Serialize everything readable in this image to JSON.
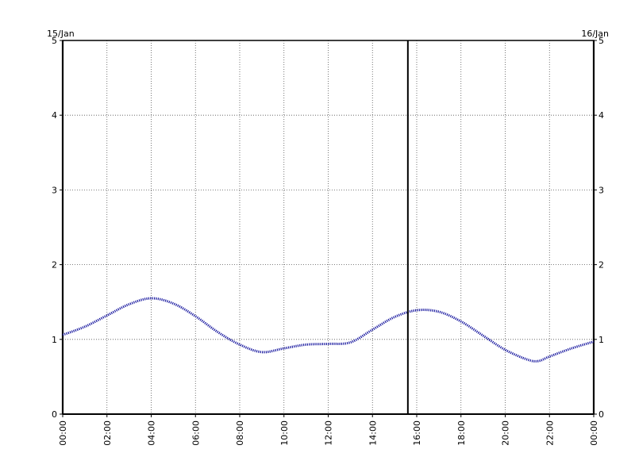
{
  "chart_data": {
    "type": "line",
    "x_axis": {
      "kind": "time",
      "start": "00:00",
      "end": "24:00",
      "tick_labels": [
        "00:00",
        "02:00",
        "04:00",
        "06:00",
        "08:00",
        "10:00",
        "12:00",
        "14:00",
        "16:00",
        "18:00",
        "20:00",
        "22:00",
        "00:00"
      ]
    },
    "date_labels": {
      "left": "15/Jan",
      "right": "16/Jan"
    },
    "y_axis": {
      "min": 0,
      "max": 5,
      "ticks": [
        0,
        1,
        2,
        3,
        4,
        5
      ],
      "mirrored_right": true
    },
    "grid": true,
    "current_time_marker": "15:36",
    "series": [
      {
        "color": "#1a1aa0",
        "style": "dotted",
        "points": [
          [
            "00:00",
            1.06
          ],
          [
            "01:00",
            1.17
          ],
          [
            "02:00",
            1.32
          ],
          [
            "03:00",
            1.47
          ],
          [
            "04:00",
            1.55
          ],
          [
            "05:00",
            1.48
          ],
          [
            "06:00",
            1.31
          ],
          [
            "07:00",
            1.1
          ],
          [
            "08:00",
            0.93
          ],
          [
            "09:00",
            0.83
          ],
          [
            "10:00",
            0.88
          ],
          [
            "11:00",
            0.93
          ],
          [
            "12:00",
            0.94
          ],
          [
            "13:00",
            0.96
          ],
          [
            "14:00",
            1.13
          ],
          [
            "15:00",
            1.3
          ],
          [
            "16:00",
            1.39
          ],
          [
            "17:00",
            1.37
          ],
          [
            "18:00",
            1.24
          ],
          [
            "19:00",
            1.05
          ],
          [
            "20:00",
            0.86
          ],
          [
            "21:00",
            0.73
          ],
          [
            "21:30",
            0.71
          ],
          [
            "22:00",
            0.77
          ],
          [
            "23:00",
            0.88
          ],
          [
            "24:00",
            0.97
          ]
        ]
      }
    ]
  }
}
